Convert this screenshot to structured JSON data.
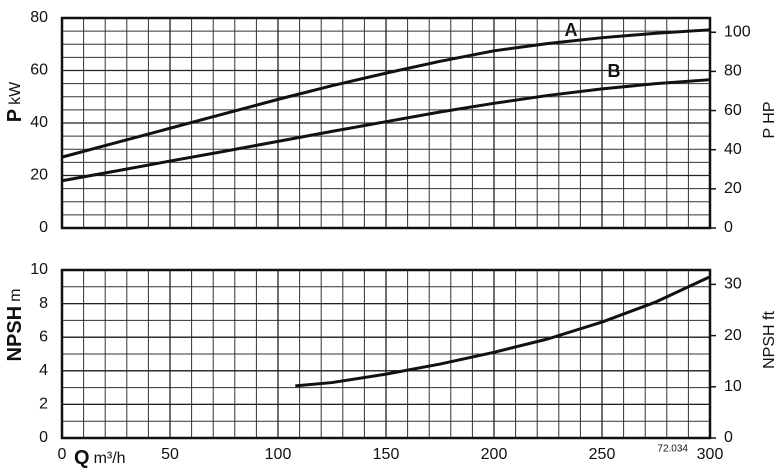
{
  "chart_data": [
    {
      "type": "line",
      "ylabel": "P",
      "yunit": "kW",
      "y2label": "P HP",
      "x": [
        0,
        25,
        50,
        75,
        100,
        125,
        150,
        175,
        200,
        225,
        250,
        275,
        300
      ],
      "series": [
        {
          "name": "A",
          "color": "#111111",
          "values": [
            27,
            32.5,
            38,
            43.5,
            49,
            54.2,
            59,
            63.5,
            67.5,
            70.3,
            72.5,
            74.2,
            75.5
          ]
        },
        {
          "name": "B",
          "color": "#111111",
          "values": [
            18,
            21.7,
            25.5,
            29.2,
            33,
            36.8,
            40.5,
            44.2,
            47.5,
            50.5,
            53,
            55,
            56.5
          ]
        }
      ],
      "xlim": [
        0,
        300
      ],
      "xticks": [
        0,
        50,
        100,
        150,
        200,
        250,
        300
      ],
      "ylim": [
        0,
        80
      ],
      "yticks": [
        0,
        20,
        40,
        60,
        80
      ],
      "y2lim": [
        0,
        107.28
      ],
      "y2ticks": [
        0,
        20,
        40,
        60,
        80,
        100
      ],
      "grid": true
    },
    {
      "type": "line",
      "ylabel": "NPSH",
      "yunit": "m",
      "y2label": "NPSH ft",
      "xlabel": "Q",
      "xunit": "m³/h",
      "note": "72.034",
      "x": [
        108,
        125,
        150,
        175,
        200,
        225,
        250,
        275,
        300
      ],
      "series": [
        {
          "name": "NPSH",
          "color": "#111111",
          "values": [
            3.1,
            3.3,
            3.8,
            4.4,
            5.1,
            5.9,
            6.9,
            8.1,
            9.6
          ]
        }
      ],
      "xlim": [
        0,
        300
      ],
      "xticks": [
        0,
        50,
        100,
        150,
        200,
        250,
        300
      ],
      "ylim": [
        0,
        10
      ],
      "yticks": [
        0,
        2,
        4,
        6,
        8,
        10
      ],
      "y2lim": [
        0,
        32.81
      ],
      "y2ticks": [
        0,
        10,
        20,
        30
      ],
      "grid": true
    }
  ]
}
